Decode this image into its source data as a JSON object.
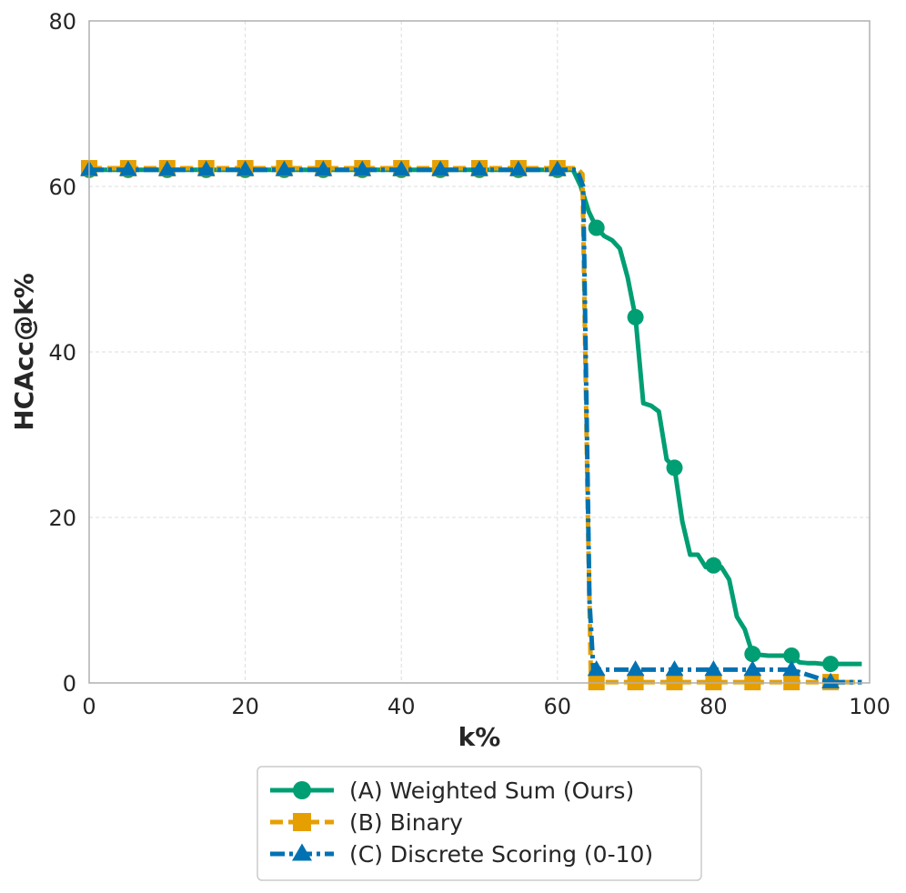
{
  "chart_data": {
    "type": "line",
    "title": "",
    "xlabel": "k%",
    "ylabel": "HCAcc@k%",
    "xlim": [
      0,
      100
    ],
    "ylim": [
      0,
      80
    ],
    "xticks": [
      0,
      20,
      40,
      60,
      80,
      100
    ],
    "yticks": [
      0,
      20,
      40,
      60,
      80
    ],
    "xtick_labels": [
      "0",
      "20",
      "40",
      "60",
      "80",
      "100"
    ],
    "ytick_labels": [
      "0",
      "20",
      "40",
      "60",
      "80"
    ],
    "grid": true,
    "legend_position": "bottom-center, below plot",
    "series": [
      {
        "name": "(A) Weighted Sum (Ours)",
        "color": "#009E73",
        "line_style": "solid",
        "marker": "circle",
        "x": [
          0,
          5,
          10,
          15,
          20,
          25,
          30,
          35,
          40,
          45,
          50,
          55,
          60,
          62,
          63,
          64,
          65,
          66,
          67,
          68,
          69,
          70,
          71,
          72,
          73,
          74,
          75,
          76,
          77,
          78,
          79,
          80,
          81,
          82,
          83,
          84,
          85,
          86,
          87,
          88,
          89,
          90,
          91,
          92,
          93,
          94,
          95,
          96,
          97,
          98,
          99
        ],
        "y": [
          62,
          62,
          62,
          62,
          62,
          62,
          62,
          62,
          62,
          62,
          62,
          62,
          62,
          62,
          60,
          57,
          55,
          54,
          53.5,
          52.5,
          49,
          44.2,
          33.8,
          33.5,
          32.8,
          27,
          26,
          19.5,
          15.5,
          15.5,
          14,
          14.2,
          14,
          12.5,
          8,
          6.5,
          3.5,
          3.4,
          3.3,
          3.3,
          3.3,
          3.3,
          2.5,
          2.4,
          2.4,
          2.3,
          2.3,
          2.3,
          2.3,
          2.3,
          2.3
        ],
        "marker_x": [
          0,
          5,
          10,
          15,
          20,
          25,
          30,
          35,
          40,
          45,
          50,
          55,
          60,
          65,
          70,
          75,
          80,
          85,
          90,
          95
        ]
      },
      {
        "name": "(B) Binary",
        "color": "#E69F00",
        "line_style": "dashed",
        "marker": "square",
        "x": [
          0,
          5,
          10,
          15,
          20,
          25,
          30,
          35,
          40,
          45,
          50,
          55,
          60,
          62.5,
          63.2,
          63.9,
          64.3,
          70,
          75,
          80,
          85,
          90,
          95,
          99
        ],
        "y": [
          62.2,
          62.2,
          62.2,
          62.2,
          62.2,
          62.2,
          62.2,
          62.2,
          62.2,
          62.2,
          62.2,
          62.2,
          62.2,
          62.2,
          61.5,
          20,
          0.1,
          0.1,
          0.1,
          0.1,
          0.1,
          0.1,
          0.1,
          0.1
        ],
        "marker_x": [
          0,
          5,
          10,
          15,
          20,
          25,
          30,
          35,
          40,
          45,
          50,
          55,
          60,
          65,
          70,
          75,
          80,
          85,
          90,
          95
        ]
      },
      {
        "name": "(C) Discrete Scoring (0-10)",
        "color": "#0072B2",
        "line_style": "dashdot",
        "marker": "triangle",
        "x": [
          0,
          5,
          10,
          15,
          20,
          25,
          30,
          35,
          40,
          45,
          50,
          55,
          60,
          62.5,
          63.3,
          64.1,
          64.6,
          70,
          75,
          80,
          85,
          90,
          95,
          99
        ],
        "y": [
          62,
          62,
          62,
          62,
          62,
          62,
          62,
          62,
          62,
          62,
          62,
          62,
          62,
          62,
          60,
          10,
          1.6,
          1.6,
          1.6,
          1.6,
          1.6,
          1.6,
          0.1,
          0.1
        ],
        "marker_x": [
          0,
          5,
          10,
          15,
          20,
          25,
          30,
          35,
          40,
          45,
          50,
          55,
          60,
          65,
          70,
          75,
          80,
          85,
          90,
          95
        ]
      }
    ]
  }
}
